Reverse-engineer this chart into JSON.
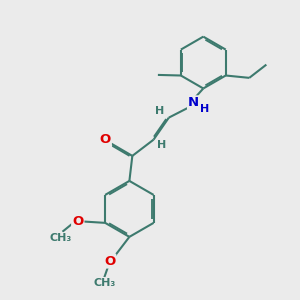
{
  "bg_color": "#ebebeb",
  "bond_color": "#3d7a6e",
  "bond_width": 1.5,
  "dbo": 0.055,
  "atom_colors": {
    "O": "#e00000",
    "N": "#0000cc",
    "C": "#3d7a6e",
    "H": "#3d7a6e"
  },
  "font_size_atom": 9.5,
  "font_size_H": 8.0,
  "font_size_label": 8.0
}
